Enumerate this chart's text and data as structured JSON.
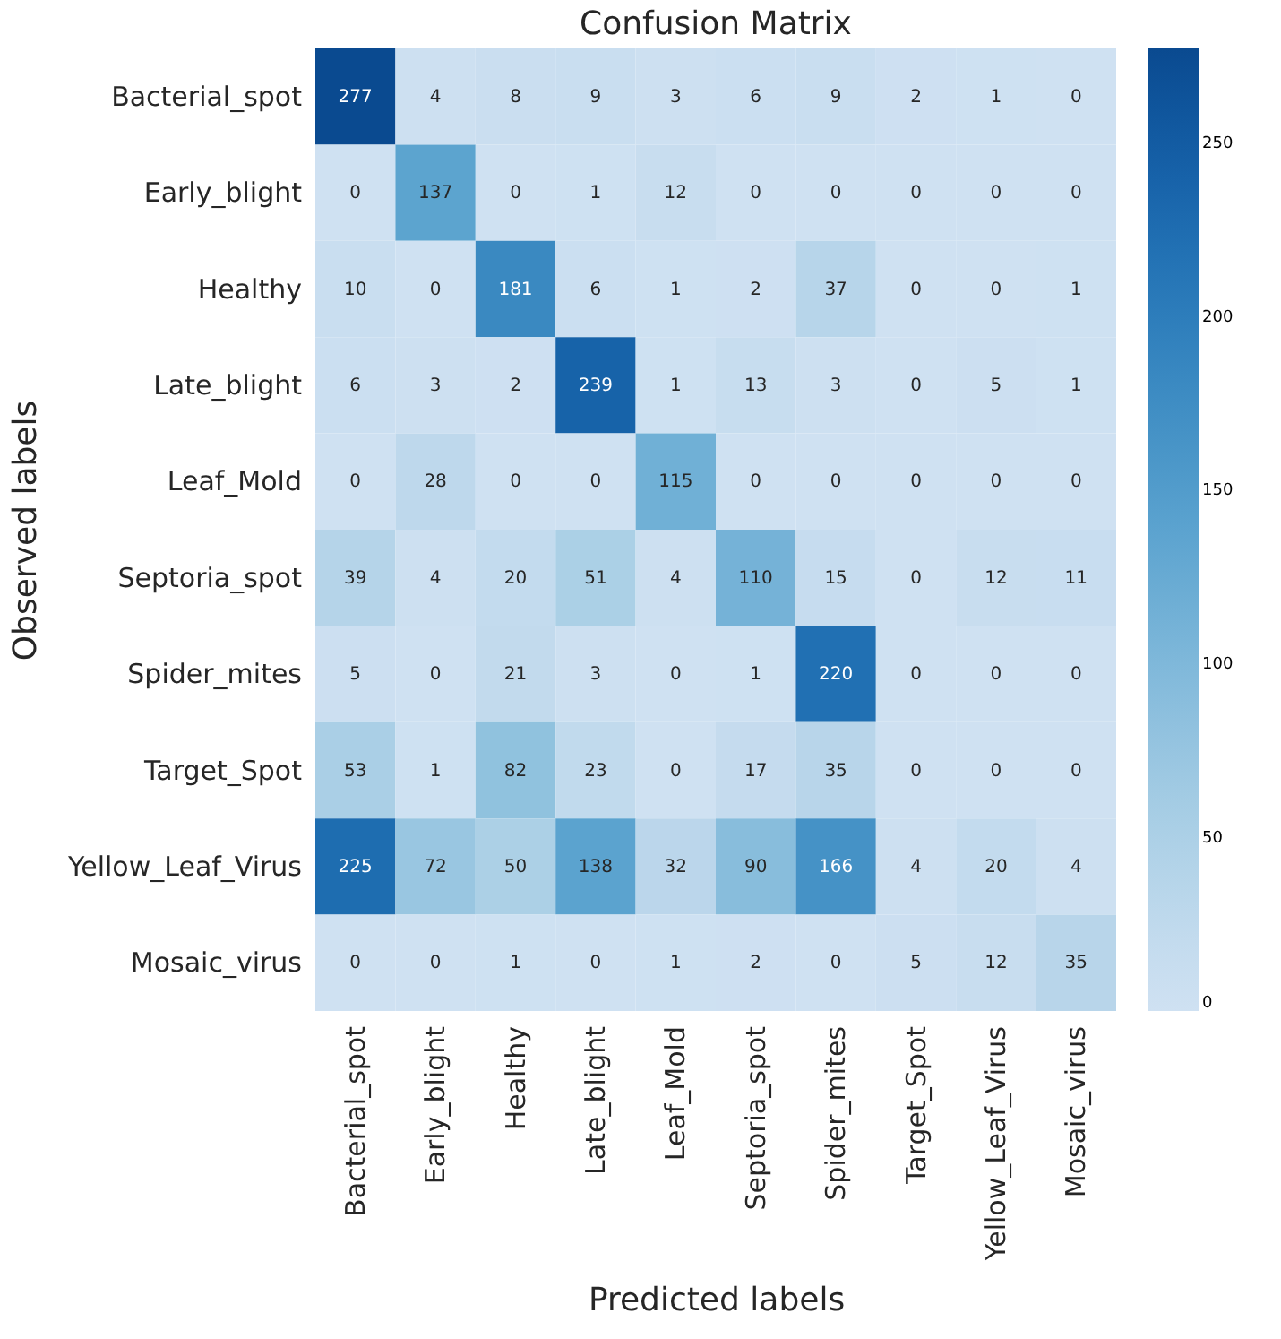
{
  "chart_data": {
    "type": "heatmap",
    "title": "Confusion Matrix",
    "xlabel": "Predicted labels",
    "ylabel": "Observed labels",
    "categories": [
      "Bacterial_spot",
      "Early_blight",
      "Healthy",
      "Late_blight",
      "Leaf_Mold",
      "Septoria_spot",
      "Spider_mites",
      "Target_Spot",
      "Yellow_Leaf_Virus",
      "Mosaic_virus"
    ],
    "y_categories": [
      "Bacterial_spot",
      "Early_blight",
      "Healthy",
      "Late_blight",
      "Leaf_Mold",
      "Septoria_spot",
      "Spider_mites",
      "Target_Spot",
      "Yellow_Leaf_Virus",
      "Mosaic_virus"
    ],
    "cells": [
      [
        277,
        4,
        8,
        9,
        3,
        6,
        9,
        2,
        1,
        0
      ],
      [
        0,
        137,
        0,
        1,
        12,
        0,
        0,
        0,
        0,
        0
      ],
      [
        10,
        0,
        181,
        6,
        1,
        2,
        37,
        0,
        0,
        1
      ],
      [
        6,
        3,
        2,
        239,
        1,
        13,
        3,
        0,
        5,
        1
      ],
      [
        0,
        28,
        0,
        0,
        115,
        0,
        0,
        0,
        0,
        0
      ],
      [
        39,
        4,
        20,
        51,
        4,
        110,
        15,
        0,
        12,
        11
      ],
      [
        5,
        0,
        21,
        3,
        0,
        1,
        220,
        0,
        0,
        0
      ],
      [
        53,
        1,
        82,
        23,
        0,
        17,
        35,
        0,
        0,
        0
      ],
      [
        225,
        72,
        50,
        138,
        32,
        90,
        166,
        4,
        20,
        4
      ],
      [
        0,
        0,
        1,
        0,
        1,
        2,
        0,
        5,
        12,
        35
      ]
    ],
    "clim": [
      0,
      277
    ],
    "cticks": [
      0,
      50,
      100,
      150,
      200,
      250
    ],
    "data_labels": true
  }
}
